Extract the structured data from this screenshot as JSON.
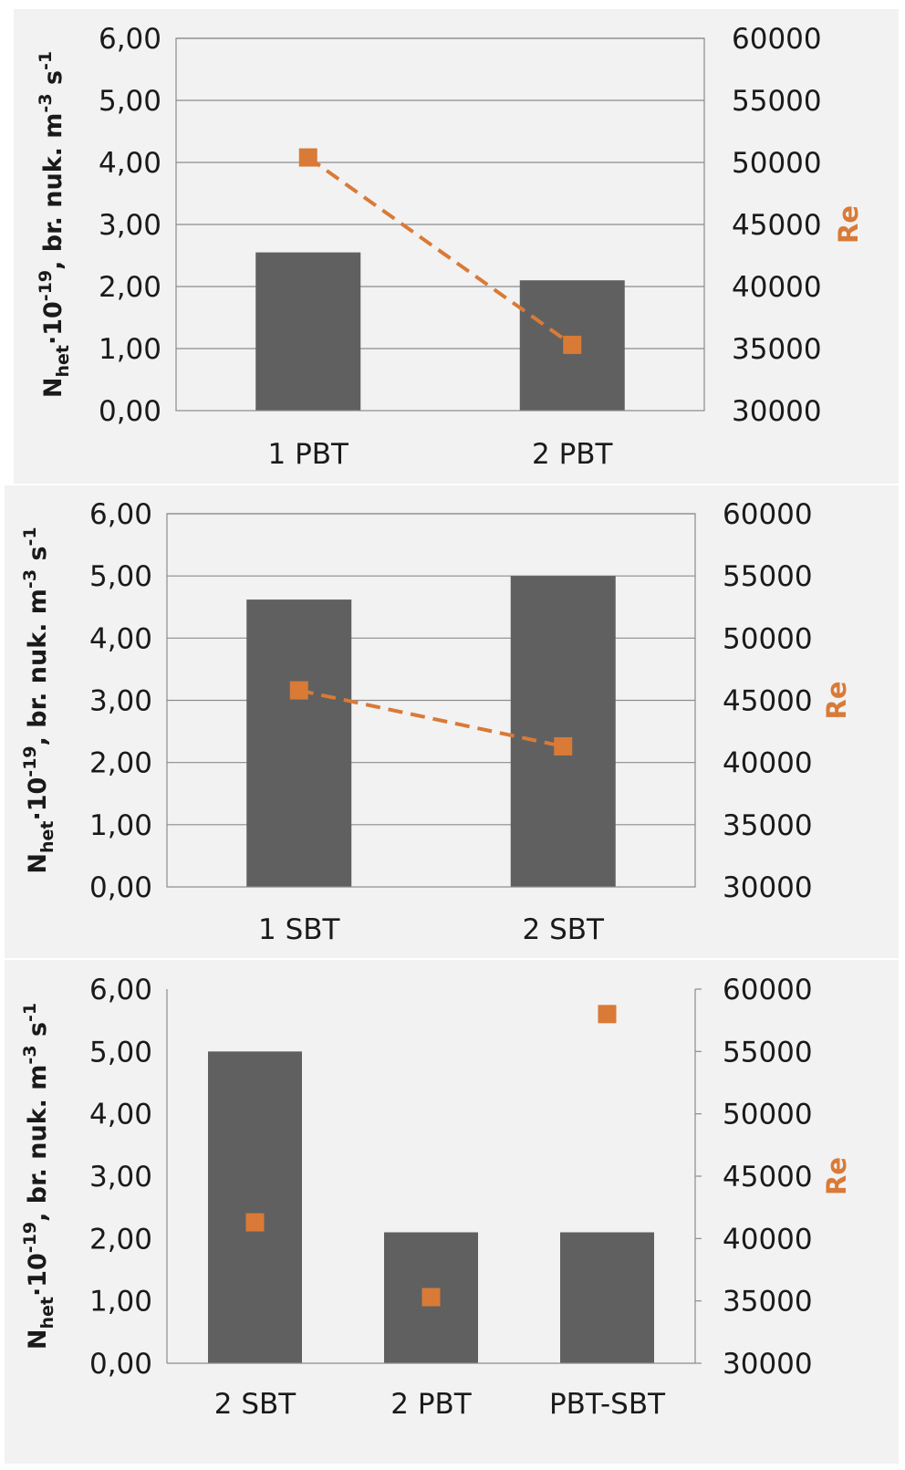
{
  "figure": {
    "bar_color": "#606060",
    "line_color": "#d97a37",
    "panel_background": "#f2f2f2",
    "grid_color": "#8c8c8c"
  },
  "chart_data": [
    {
      "type": "bar",
      "categories": [
        "1 PBT",
        "2 PBT"
      ],
      "series": [
        {
          "name": "",
          "axis": "left",
          "type": "bar",
          "values": [
            2.55,
            2.1
          ]
        },
        {
          "name": "Re",
          "axis": "right",
          "type": "line",
          "line_style": "dashed",
          "marker": "square",
          "values": [
            50400,
            35300
          ]
        }
      ],
      "ylabel": "Nhet·10-19, br. nuk. m-3 s-1",
      "ylabel_parts": {
        "base": "N",
        "sub": "het",
        "mid": "·10",
        "sup1": "-19",
        "rest": ", br. nuk. m",
        "sup2": "-3",
        "rest2": " s",
        "sup3": "-1"
      },
      "y2label": "Re",
      "ylim": [
        0,
        6
      ],
      "y2lim": [
        30000,
        60000
      ],
      "yticks": [
        "0,00",
        "1,00",
        "2,00",
        "3,00",
        "4,00",
        "5,00",
        "6,00"
      ],
      "y2ticks": [
        "30000",
        "35000",
        "40000",
        "45000",
        "50000",
        "55000",
        "60000"
      ],
      "grid": true
    },
    {
      "type": "bar",
      "categories": [
        "1 SBT",
        "2 SBT"
      ],
      "series": [
        {
          "name": "",
          "axis": "left",
          "type": "bar",
          "values": [
            4.62,
            5.0
          ]
        },
        {
          "name": "Re",
          "axis": "right",
          "type": "line",
          "line_style": "dashed",
          "marker": "square",
          "values": [
            45800,
            41300
          ]
        }
      ],
      "ylabel": "Nhet·10-19, br. nuk. m-3 s-1",
      "ylabel_parts": {
        "base": "N",
        "sub": "het",
        "mid": "·10",
        "sup1": "-19",
        "rest": ", br. nuk. m",
        "sup2": "-3",
        "rest2": " s",
        "sup3": "-1"
      },
      "y2label": "Re",
      "ylim": [
        0,
        6
      ],
      "y2lim": [
        30000,
        60000
      ],
      "yticks": [
        "0,00",
        "1,00",
        "2,00",
        "3,00",
        "4,00",
        "5,00",
        "6,00"
      ],
      "y2ticks": [
        "30000",
        "35000",
        "40000",
        "45000",
        "50000",
        "55000",
        "60000"
      ],
      "grid": true
    },
    {
      "type": "bar",
      "categories": [
        "2 SBT",
        "2 PBT",
        "PBT-SBT"
      ],
      "series": [
        {
          "name": "",
          "axis": "left",
          "type": "bar",
          "values": [
            5.0,
            2.1,
            2.1
          ]
        },
        {
          "name": "Re",
          "axis": "right",
          "type": "scatter",
          "line_style": "none",
          "marker": "square",
          "values": [
            41300,
            35300,
            58000
          ]
        }
      ],
      "ylabel": "Nhet·10-19, br. nuk. m-3 s-1",
      "ylabel_parts": {
        "base": "N",
        "sub": "het",
        "mid": "·10",
        "sup1": "-19",
        "rest": ", br. nuk. m",
        "sup2": "-3",
        "rest2": " s",
        "sup3": "-1"
      },
      "y2label": "Re",
      "ylim": [
        0,
        6
      ],
      "y2lim": [
        30000,
        60000
      ],
      "yticks": [
        "0,00",
        "1,00",
        "2,00",
        "3,00",
        "4,00",
        "5,00",
        "6,00"
      ],
      "y2ticks": [
        "30000",
        "35000",
        "40000",
        "45000",
        "50000",
        "55000",
        "60000"
      ],
      "grid": false
    }
  ]
}
